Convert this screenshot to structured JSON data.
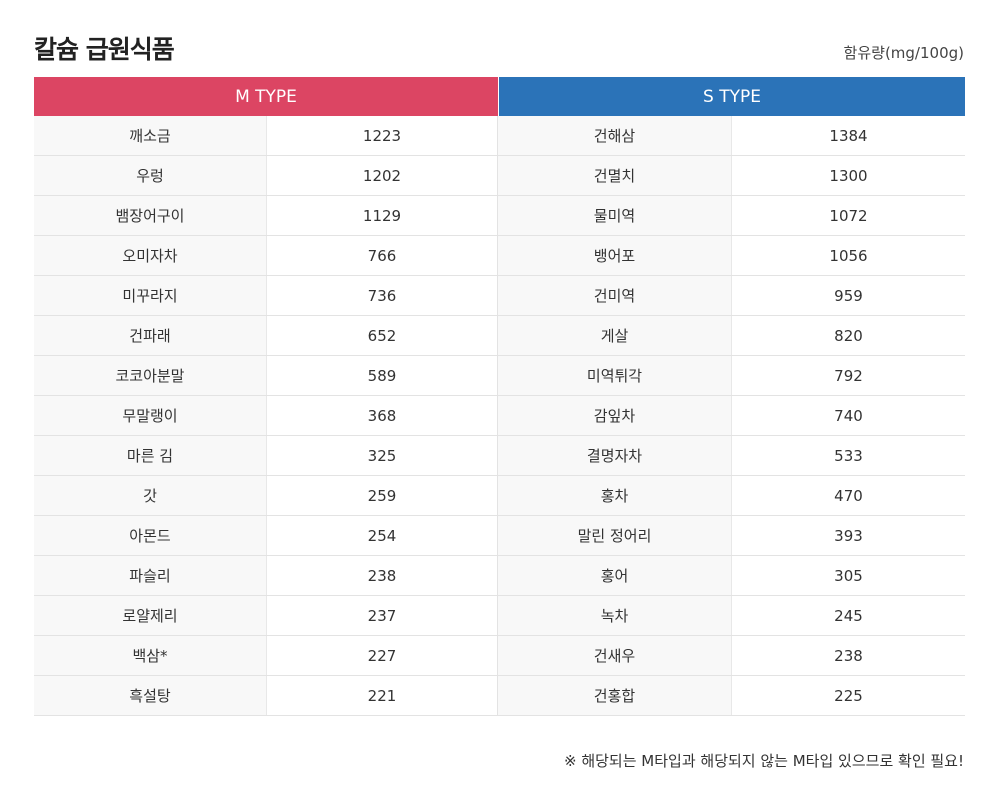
{
  "title": "칼슘 급원식품",
  "unit": "함유량(mg/100g)",
  "colors": {
    "m_type_header": "#dc4563",
    "s_type_header": "#2b73b8"
  },
  "columns": {
    "m_type": "M TYPE",
    "s_type": "S TYPE"
  },
  "rows": [
    {
      "m_name": "깨소금",
      "m_value": "1223",
      "s_name": "건해삼",
      "s_value": "1384"
    },
    {
      "m_name": "우렁",
      "m_value": "1202",
      "s_name": "건멸치",
      "s_value": "1300"
    },
    {
      "m_name": "뱀장어구이",
      "m_value": "1129",
      "s_name": "물미역",
      "s_value": "1072"
    },
    {
      "m_name": "오미자차",
      "m_value": "766",
      "s_name": "뱅어포",
      "s_value": "1056"
    },
    {
      "m_name": "미꾸라지",
      "m_value": "736",
      "s_name": "건미역",
      "s_value": "959"
    },
    {
      "m_name": "건파래",
      "m_value": "652",
      "s_name": "게살",
      "s_value": "820"
    },
    {
      "m_name": "코코아분말",
      "m_value": "589",
      "s_name": "미역튀각",
      "s_value": "792"
    },
    {
      "m_name": "무말랭이",
      "m_value": "368",
      "s_name": "감잎차",
      "s_value": "740"
    },
    {
      "m_name": "마른 김",
      "m_value": "325",
      "s_name": "결명자차",
      "s_value": "533"
    },
    {
      "m_name": "갓",
      "m_value": "259",
      "s_name": "홍차",
      "s_value": "470"
    },
    {
      "m_name": "아몬드",
      "m_value": "254",
      "s_name": "말린 정어리",
      "s_value": "393"
    },
    {
      "m_name": "파슬리",
      "m_value": "238",
      "s_name": "홍어",
      "s_value": "305"
    },
    {
      "m_name": "로얄제리",
      "m_value": "237",
      "s_name": "녹차",
      "s_value": "245"
    },
    {
      "m_name": "백삼*",
      "m_value": "227",
      "s_name": "건새우",
      "s_value": "238"
    },
    {
      "m_name": "흑설탕",
      "m_value": "221",
      "s_name": "건홍합",
      "s_value": "225"
    }
  ],
  "note": "※ 해당되는 M타입과 해당되지 않는 M타입 있으므로 확인 필요!"
}
